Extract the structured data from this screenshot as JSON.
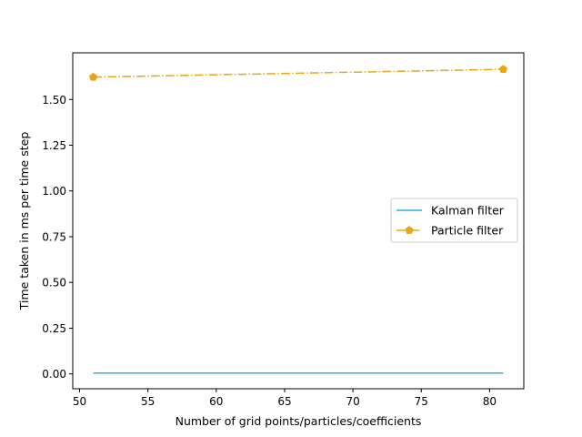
{
  "chart_data": {
    "type": "line",
    "title": "",
    "xlabel": "Number of grid points/particles/coefficients",
    "ylabel": "Time taken in ms per time step",
    "xlim": [
      49.5,
      82.5
    ],
    "ylim": [
      -0.081,
      1.755
    ],
    "xticks": [
      50,
      55,
      60,
      65,
      70,
      75,
      80
    ],
    "xtick_labels": [
      "50",
      "55",
      "60",
      "65",
      "70",
      "75",
      "80"
    ],
    "yticks": [
      0.0,
      0.25,
      0.5,
      0.75,
      1.0,
      1.25,
      1.5
    ],
    "ytick_labels": [
      "0.00",
      "0.25",
      "0.50",
      "0.75",
      "1.00",
      "1.25",
      "1.50"
    ],
    "grid": false,
    "legend_position": "center-right",
    "series": [
      {
        "name": "Kalman filter",
        "x": [
          51,
          81
        ],
        "values": [
          0.005,
          0.005
        ],
        "color": "#2ab0e6",
        "linestyle": "solid",
        "marker": "none"
      },
      {
        "name": "Particle filter",
        "x": [
          51,
          81
        ],
        "values": [
          1.622,
          1.665
        ],
        "color": "#e8a617",
        "linestyle": "dashdot",
        "marker": "pentagon"
      }
    ]
  }
}
